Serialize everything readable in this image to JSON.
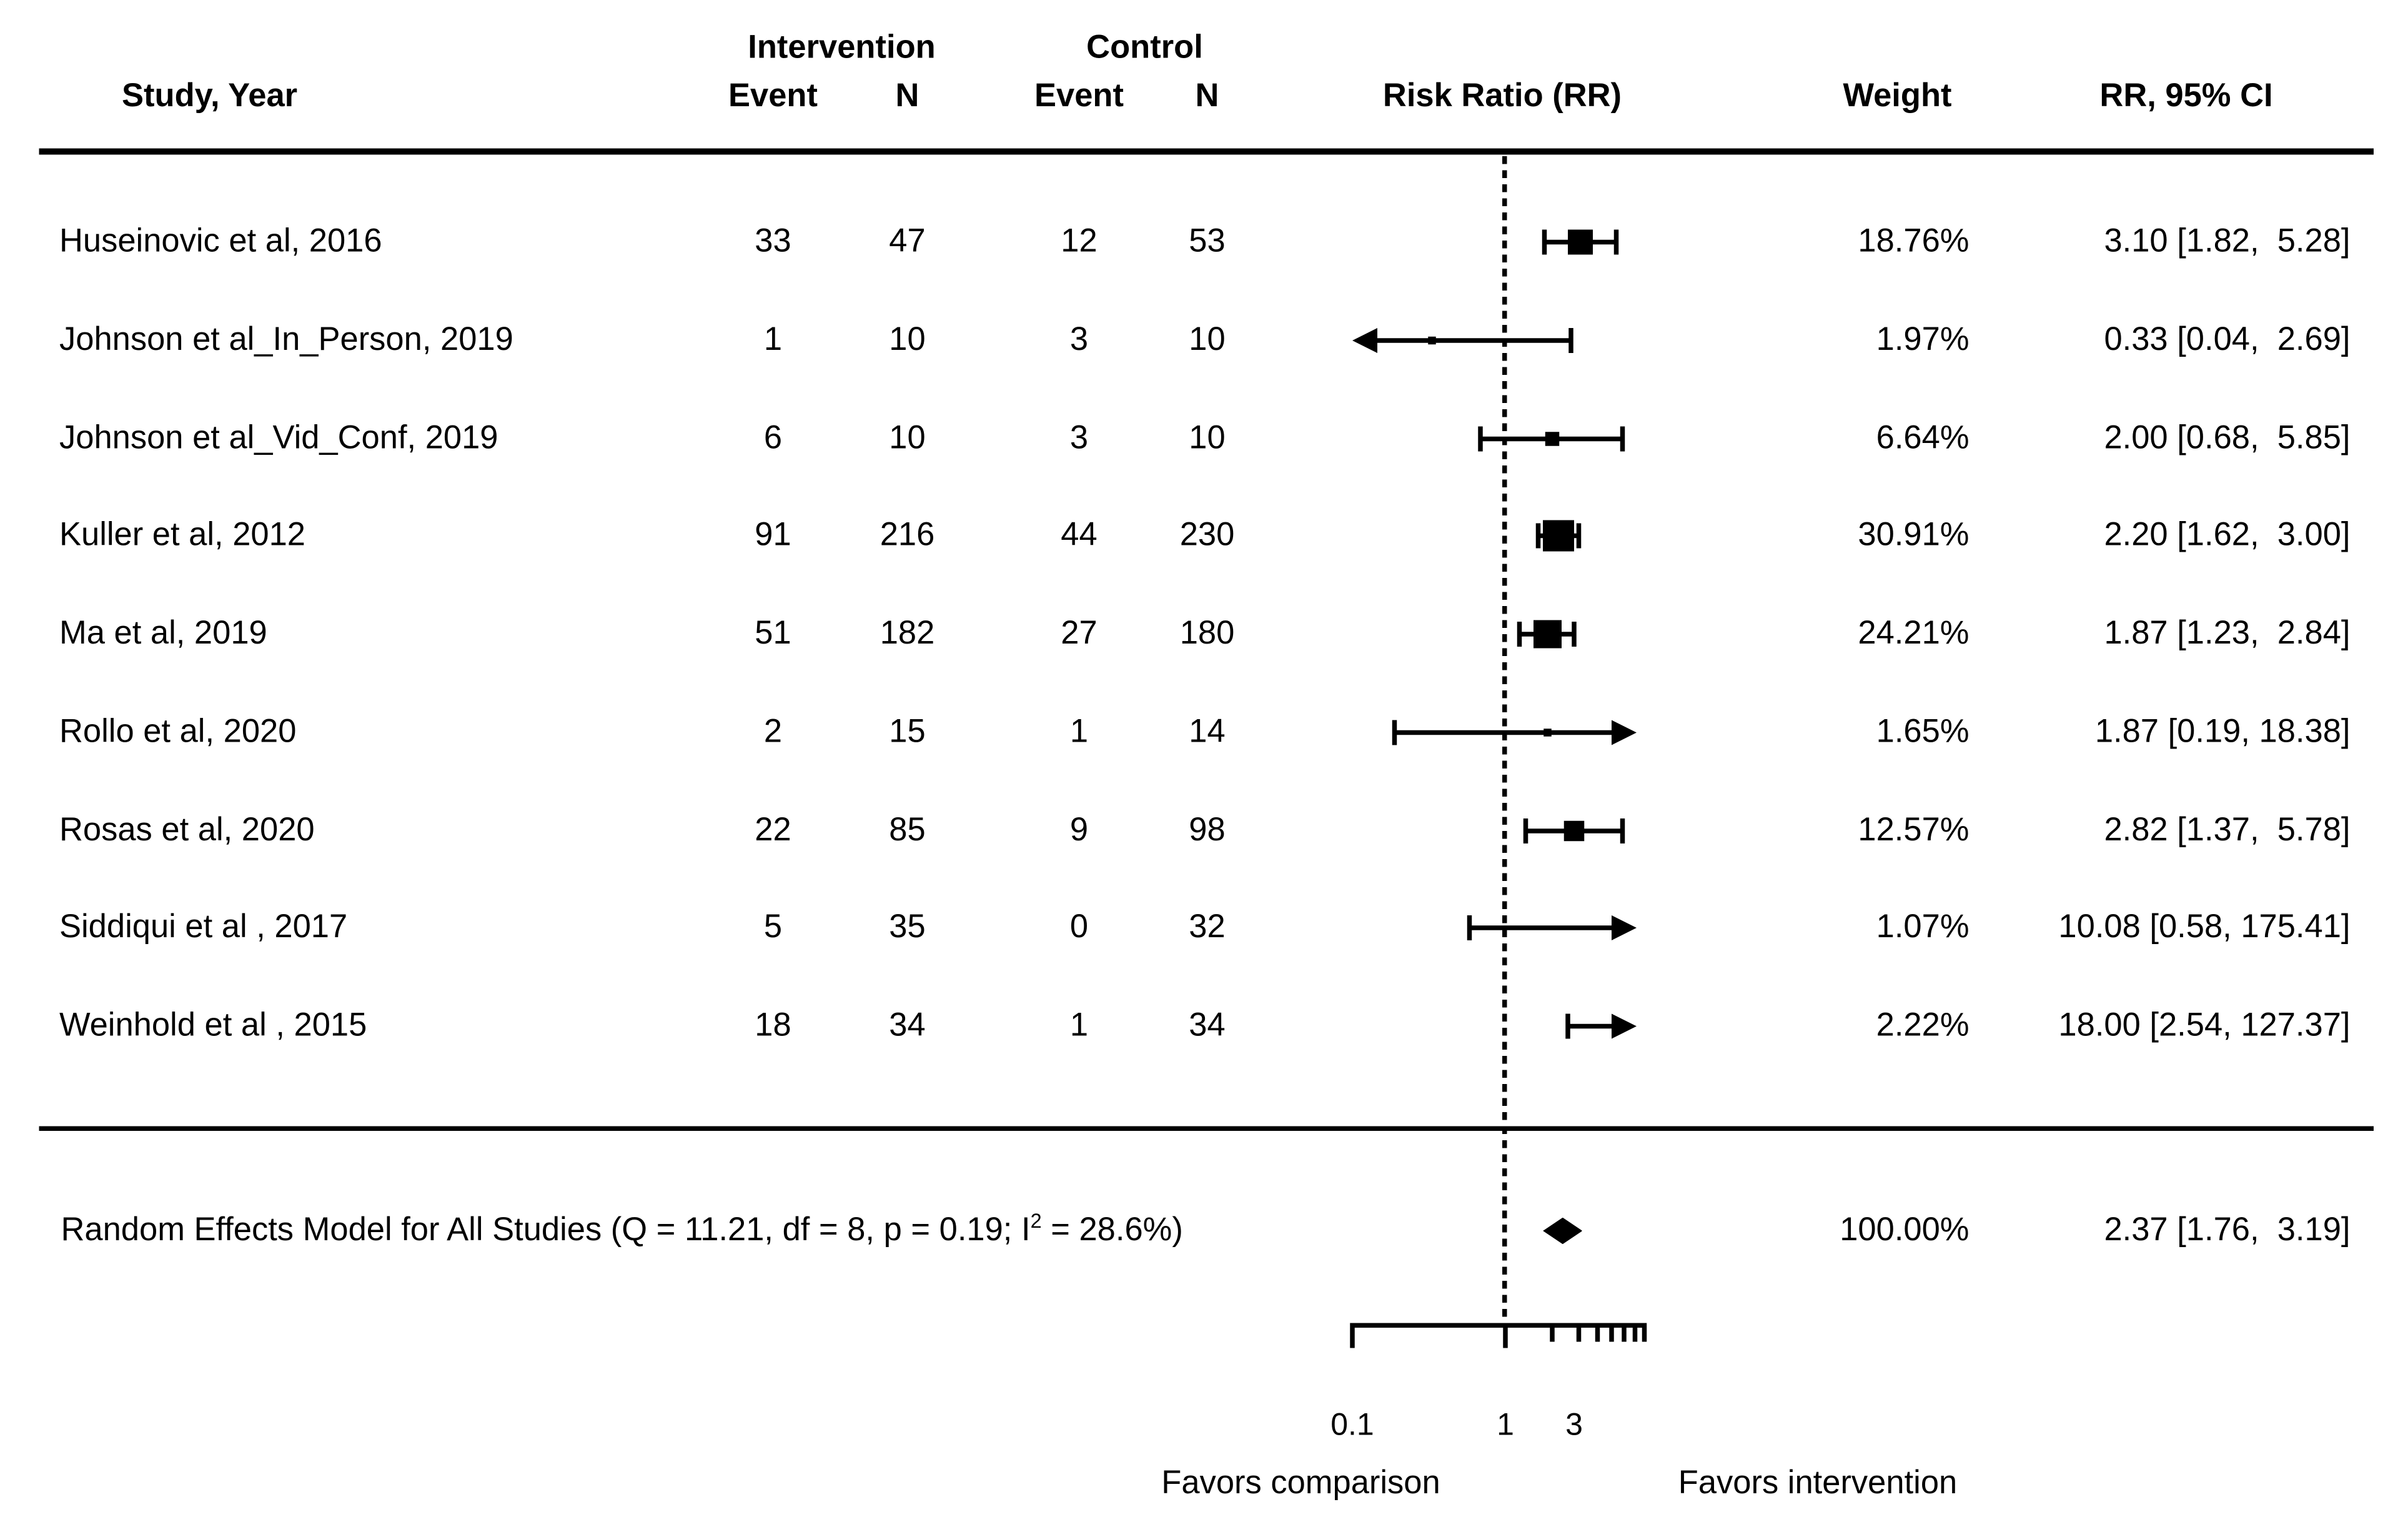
{
  "header": {
    "study_year": "Study, Year",
    "intervention": "Intervention",
    "control": "Control",
    "event": "Event",
    "n": "N",
    "risk_ratio": "Risk Ratio (RR)",
    "weight": "Weight",
    "rr_95_ci": "RR, 95% CI"
  },
  "studies": [
    {
      "name": "Huseinovic et al, 2016",
      "int_event": "33",
      "int_n": "47",
      "ctrl_event": "12",
      "ctrl_n": "53",
      "weight": "18.76%",
      "rr_ci": "3.10 [1.82,  5.28]"
    },
    {
      "name": "Johnson et al_In_Person, 2019",
      "int_event": "1",
      "int_n": "10",
      "ctrl_event": "3",
      "ctrl_n": "10",
      "weight": "1.97%",
      "rr_ci": "0.33 [0.04,  2.69]"
    },
    {
      "name": "Johnson et al_Vid_Conf, 2019",
      "int_event": "6",
      "int_n": "10",
      "ctrl_event": "3",
      "ctrl_n": "10",
      "weight": "6.64%",
      "rr_ci": "2.00 [0.68,  5.85]"
    },
    {
      "name": "Kuller et al, 2012",
      "int_event": "91",
      "int_n": "216",
      "ctrl_event": "44",
      "ctrl_n": "230",
      "weight": "30.91%",
      "rr_ci": "2.20 [1.62,  3.00]"
    },
    {
      "name": "Ma et al, 2019",
      "int_event": "51",
      "int_n": "182",
      "ctrl_event": "27",
      "ctrl_n": "180",
      "weight": "24.21%",
      "rr_ci": "1.87 [1.23,  2.84]"
    },
    {
      "name": "Rollo et al, 2020",
      "int_event": "2",
      "int_n": "15",
      "ctrl_event": "1",
      "ctrl_n": "14",
      "weight": "1.65%",
      "rr_ci": "1.87 [0.19, 18.38]"
    },
    {
      "name": "Rosas et al, 2020",
      "int_event": "22",
      "int_n": "85",
      "ctrl_event": "9",
      "ctrl_n": "98",
      "weight": "12.57%",
      "rr_ci": "2.82 [1.37,  5.78]"
    },
    {
      "name": "Siddiqui et al , 2017",
      "int_event": "5",
      "int_n": "35",
      "ctrl_event": "0",
      "ctrl_n": "32",
      "weight": "1.07%",
      "rr_ci": "10.08 [0.58, 175.41]"
    },
    {
      "name": "Weinhold et al , 2015",
      "int_event": "18",
      "int_n": "34",
      "ctrl_event": "1",
      "ctrl_n": "34",
      "weight": "2.22%",
      "rr_ci": "18.00 [2.54, 127.37]"
    }
  ],
  "summary": {
    "label_pre": "Random Effects Model for All Studies (Q = 11.21, df = 8, p = 0.19; I",
    "label_sup": "2",
    "label_post": " = 28.6%)",
    "weight": "100.00%",
    "rr_ci": "2.37 [1.76,  3.19]"
  },
  "axis": {
    "tick_labels": [
      "0.1",
      "1",
      "3"
    ],
    "favors_left": "Favors comparison",
    "favors_right": "Favors intervention"
  },
  "chart_data": {
    "type": "scatter",
    "subtype": "forest_plot_meta_analysis",
    "effect_measure": "Risk Ratio (RR)",
    "x_scale": "log10",
    "x_axis_range": [
      0.1,
      8
    ],
    "x_axis_tick_labels": [
      "0.1",
      "1",
      "3"
    ],
    "x_axis_major_ticks": [
      0.1,
      1
    ],
    "x_axis_minor_ticks": [
      2,
      3,
      4,
      5,
      6,
      7,
      8
    ],
    "null_line_x": 1,
    "favors_left": "Favors comparison",
    "favors_right": "Favors intervention",
    "studies": [
      {
        "study": "Huseinovic et al, 2016",
        "intervention_events": 33,
        "intervention_n": 47,
        "control_events": 12,
        "control_n": 53,
        "rr": 3.1,
        "ci_lower": 1.82,
        "ci_upper": 5.28,
        "weight_pct": 18.76
      },
      {
        "study": "Johnson et al_In_Person, 2019",
        "intervention_events": 1,
        "intervention_n": 10,
        "control_events": 3,
        "control_n": 10,
        "rr": 0.33,
        "ci_lower": 0.04,
        "ci_upper": 2.69,
        "weight_pct": 1.97
      },
      {
        "study": "Johnson et al_Vid_Conf, 2019",
        "intervention_events": 6,
        "intervention_n": 10,
        "control_events": 3,
        "control_n": 10,
        "rr": 2.0,
        "ci_lower": 0.68,
        "ci_upper": 5.85,
        "weight_pct": 6.64
      },
      {
        "study": "Kuller et al, 2012",
        "intervention_events": 91,
        "intervention_n": 216,
        "control_events": 44,
        "control_n": 230,
        "rr": 2.2,
        "ci_lower": 1.62,
        "ci_upper": 3.0,
        "weight_pct": 30.91
      },
      {
        "study": "Ma et al, 2019",
        "intervention_events": 51,
        "intervention_n": 182,
        "control_events": 27,
        "control_n": 180,
        "rr": 1.87,
        "ci_lower": 1.23,
        "ci_upper": 2.84,
        "weight_pct": 24.21
      },
      {
        "study": "Rollo et al, 2020",
        "intervention_events": 2,
        "intervention_n": 15,
        "control_events": 1,
        "control_n": 14,
        "rr": 1.87,
        "ci_lower": 0.19,
        "ci_upper": 18.38,
        "weight_pct": 1.65
      },
      {
        "study": "Rosas et al, 2020",
        "intervention_events": 22,
        "intervention_n": 85,
        "control_events": 9,
        "control_n": 98,
        "rr": 2.82,
        "ci_lower": 1.37,
        "ci_upper": 5.78,
        "weight_pct": 12.57
      },
      {
        "study": "Siddiqui et al , 2017",
        "intervention_events": 5,
        "intervention_n": 35,
        "control_events": 0,
        "control_n": 32,
        "rr": 10.08,
        "ci_lower": 0.58,
        "ci_upper": 175.41,
        "weight_pct": 1.07
      },
      {
        "study": "Weinhold et al , 2015",
        "intervention_events": 18,
        "intervention_n": 34,
        "control_events": 1,
        "control_n": 34,
        "rr": 18.0,
        "ci_lower": 2.54,
        "ci_upper": 127.37,
        "weight_pct": 2.22
      }
    ],
    "summary": {
      "label": "Random Effects Model for All Studies",
      "Q": 11.21,
      "df": 8,
      "p": 0.19,
      "I2_pct": 28.6,
      "rr": 2.37,
      "ci_lower": 1.76,
      "ci_upper": 3.19,
      "weight_pct": 100.0
    }
  }
}
